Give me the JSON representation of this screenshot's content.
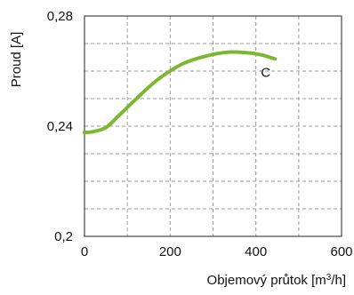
{
  "chart_data": {
    "type": "line",
    "title": "",
    "xlabel": "Objemový průtok [m³/h]",
    "xlabel_parts": {
      "prefix": "Objemový průtok [m",
      "superscript": "3",
      "suffix": "/h]"
    },
    "ylabel": "Proud [A]",
    "xlim": [
      0,
      600
    ],
    "ylim": [
      0.2,
      0.28
    ],
    "x_ticks": [
      0,
      200,
      400,
      600
    ],
    "x_tick_labels": [
      "0",
      "200",
      "400",
      "600"
    ],
    "y_ticks": [
      0.2,
      0.24,
      0.28
    ],
    "y_tick_labels": [
      "0,2",
      "0,24",
      "0,28"
    ],
    "grid": true,
    "grid_style": "dashed",
    "colors": {
      "series": "#7cb82f",
      "grid": "#9a9a9a",
      "frame": "#222222"
    },
    "series": [
      {
        "label": "C",
        "x": [
          0,
          20,
          50,
          80,
          120,
          170,
          230,
          290,
          340,
          390,
          420,
          445
        ],
        "y": [
          0.2377,
          0.238,
          0.2395,
          0.2438,
          0.2498,
          0.2568,
          0.2627,
          0.2657,
          0.2669,
          0.2665,
          0.2656,
          0.2644
        ]
      }
    ]
  }
}
